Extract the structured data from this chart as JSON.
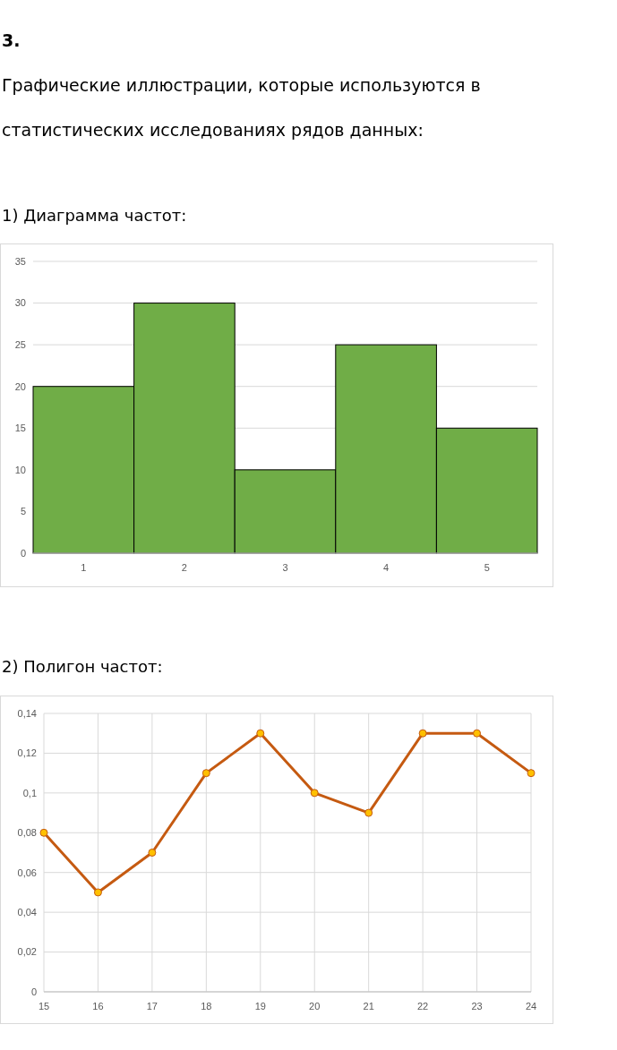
{
  "chart_data": [
    {
      "type": "bar",
      "annotations": [
        "3.",
        "Графические иллюстрации, которые используются в статистических исследованиях рядов данных:"
      ],
      "title": "1) Диаграмма частот:",
      "categories": [
        "1",
        "2",
        "3",
        "4",
        "5"
      ],
      "values": [
        20,
        30,
        10,
        25,
        15
      ],
      "color": "#70ad47",
      "ylim": [
        0,
        35
      ],
      "yticks": [
        0,
        5,
        10,
        15,
        20,
        25,
        30,
        35
      ],
      "grid": "y"
    },
    {
      "type": "line",
      "title": "2) Полигон частот:",
      "x": [
        15,
        16,
        17,
        18,
        19,
        20,
        21,
        22,
        23,
        24
      ],
      "series": [
        {
          "color": "#c55a11",
          "values": [
            0.08,
            0.05,
            0.07,
            0.11,
            0.13,
            0.1,
            0.09,
            0.13,
            0.13,
            0.11
          ]
        }
      ],
      "xlim": [
        15,
        24
      ],
      "xticks": [
        15,
        16,
        17,
        18,
        19,
        20,
        21,
        22,
        23,
        24
      ],
      "ylim": [
        0,
        0.14
      ],
      "yticks": [
        0,
        {
          "value": 0.02,
          "label": "0,02"
        },
        {
          "value": 0.04,
          "label": "0,04"
        },
        {
          "value": 0.06,
          "label": "0,06"
        },
        {
          "value": 0.08,
          "label": "0,08"
        },
        {
          "value": 0.1,
          "label": "0,1"
        },
        {
          "value": 0.12,
          "label": "0,12"
        },
        {
          "value": 0.14,
          "label": "0,14"
        }
      ],
      "grid": true,
      "marker": "circle",
      "line_style": "solid"
    }
  ]
}
